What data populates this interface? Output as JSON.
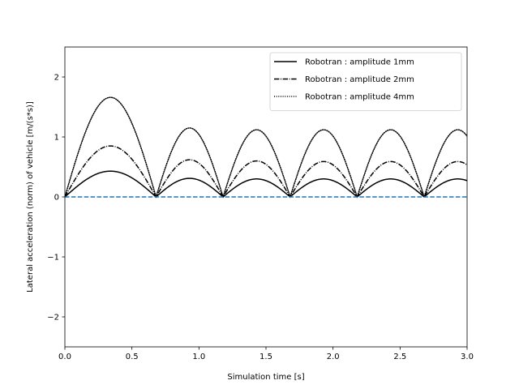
{
  "chart_data": {
    "type": "line",
    "title": "",
    "xlabel": "Simulation time [s]",
    "ylabel": "Lateral acceleration (norm) of vehicle [m/(s*s)]",
    "xlim": [
      0.0,
      3.0
    ],
    "ylim": [
      -2.5,
      2.5
    ],
    "xticks": [
      0.0,
      0.5,
      1.0,
      1.5,
      2.0,
      2.5,
      3.0
    ],
    "xtick_labels": [
      "0.0",
      "0.5",
      "1.0",
      "1.5",
      "2.0",
      "2.5",
      "3.0"
    ],
    "yticks": [
      -2,
      -1,
      0,
      1,
      2
    ],
    "ytick_labels": [
      "−2",
      "−1",
      "0",
      "1",
      "2"
    ],
    "grid": false,
    "legend_position": "top-right",
    "arch_bounds": [
      0.0,
      0.68,
      1.18,
      1.68,
      2.18,
      2.68,
      3.18
    ],
    "series": [
      {
        "name": "Robotran : amplitude 1mm",
        "style": "solid",
        "color": "#000000",
        "peaks": [
          0.43,
          0.31,
          0.3,
          0.3,
          0.3,
          0.3
        ]
      },
      {
        "name": "Robotran : amplitude 2mm",
        "style": "dashdot",
        "color": "#000000",
        "peaks": [
          0.85,
          0.62,
          0.6,
          0.59,
          0.59,
          0.59
        ]
      },
      {
        "name": "Robotran : amplitude 4mm",
        "style": "dotted",
        "color": "#000000",
        "peaks": [
          1.66,
          1.15,
          1.12,
          1.12,
          1.12,
          1.12
        ]
      },
      {
        "name": "",
        "style": "dashed",
        "color": "#1f77b4",
        "constant": 0.0
      }
    ]
  }
}
